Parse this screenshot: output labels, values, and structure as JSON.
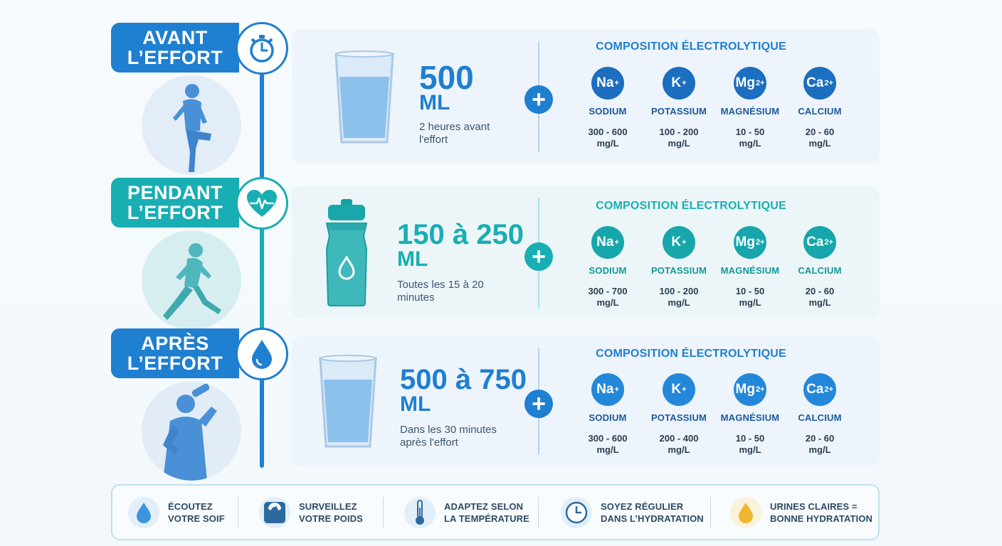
{
  "colors": {
    "blue": "#1f7fd0",
    "blue_dark": "#1b5a9c",
    "teal": "#18aeb3",
    "teal_dark": "#13989c",
    "person_blue": "#4a90d6"
  },
  "phases": [
    {
      "id": "avant",
      "title_line1": "AVANT",
      "title_line2": "L’EFFORT",
      "icon": "stopwatch-icon",
      "volume": "500",
      "unit": "ML",
      "note": "2 heures avant\nl'effort",
      "composition_title": "COMPOSITION ÉLECTROLYTIQUE",
      "electrolytes": [
        {
          "symbol": "Na",
          "charge": "+",
          "name": "SODIUM",
          "range": "300 - 600",
          "unit": "mg/L"
        },
        {
          "symbol": "K",
          "charge": "+",
          "name": "POTASSIUM",
          "range": "100 - 200",
          "unit": "mg/L"
        },
        {
          "symbol": "Mg",
          "charge": "2+",
          "name": "MAGNÉSIUM",
          "range": "10 - 50",
          "unit": "mg/L"
        },
        {
          "symbol": "Ca",
          "charge": "2+",
          "name": "CALCIUM",
          "range": "20 - 60",
          "unit": "mg/L"
        }
      ]
    },
    {
      "id": "pendant",
      "title_line1": "PENDANT",
      "title_line2": "L’EFFORT",
      "icon": "heart-pulse-icon",
      "volume": "150 à 250",
      "unit": "ML",
      "note": "Toutes les 15 à 20\nminutes",
      "composition_title": "COMPOSITION ÉLECTROLYTIQUE",
      "electrolytes": [
        {
          "symbol": "Na",
          "charge": "+",
          "name": "SODIUM",
          "range": "300 - 700",
          "unit": "mg/L"
        },
        {
          "symbol": "K",
          "charge": "+",
          "name": "POTASSIUM",
          "range": "100 - 200",
          "unit": "mg/L"
        },
        {
          "symbol": "Mg",
          "charge": "2+",
          "name": "MAGNÉSIUM",
          "range": "10 - 50",
          "unit": "mg/L"
        },
        {
          "symbol": "Ca",
          "charge": "2+",
          "name": "CALCIUM",
          "range": "20 - 60",
          "unit": "mg/L"
        }
      ]
    },
    {
      "id": "apres",
      "title_line1": "APRÈS",
      "title_line2": "L’EFFORT",
      "icon": "water-drop-icon",
      "volume": "500 à 750",
      "unit": "ML",
      "note": "Dans les 30 minutes\naprès l'effort",
      "composition_title": "COMPOSITION ÉLECTROLYTIQUE",
      "electrolytes": [
        {
          "symbol": "Na",
          "charge": "+",
          "name": "SODIUM",
          "range": "300 - 600",
          "unit": "mg/L"
        },
        {
          "symbol": "K",
          "charge": "+",
          "name": "POTASSIUM",
          "range": "200 - 400",
          "unit": "mg/L"
        },
        {
          "symbol": "Mg",
          "charge": "2+",
          "name": "MAGNÉSIUM",
          "range": "10 - 50",
          "unit": "mg/L"
        },
        {
          "symbol": "Ca",
          "charge": "2+",
          "name": "CALCIUM",
          "range": "20 - 60",
          "unit": "mg/L"
        }
      ]
    }
  ],
  "tips": [
    {
      "icon": "water-drop-icon",
      "text": "ÉCOUTEZ\nVOTRE SOIF"
    },
    {
      "icon": "scale-icon",
      "text": "SURVEILLEZ\nVOTRE POIDS"
    },
    {
      "icon": "thermometer-icon",
      "text": "ADAPTEZ SELON\nLA TEMPÉRATURE"
    },
    {
      "icon": "clock-icon",
      "text": "SOYEZ RÉGULIER\nDANS L’HYDRATATION"
    },
    {
      "icon": "urine-drop-icon",
      "text": "URINES CLAIRES =\nBONNE HYDRATATION"
    }
  ]
}
